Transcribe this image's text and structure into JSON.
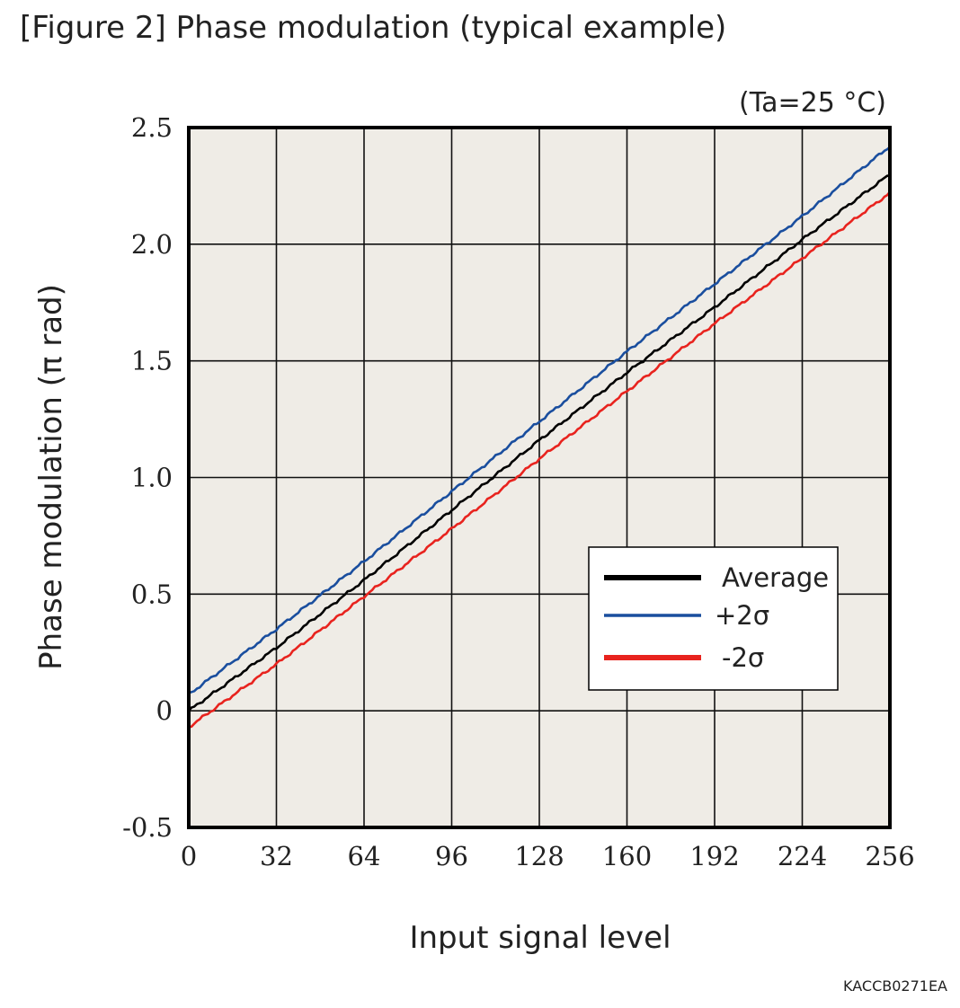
{
  "figure_title": "[Figure 2] Phase modulation (typical example)",
  "figure_code": "KACCB0271EA",
  "chart_data": {
    "type": "line",
    "condition_label": "(Ta=25 °C)",
    "xlabel": "Input signal level",
    "ylabel": "Phase modulation (π rad)",
    "xlim": [
      0,
      256
    ],
    "ylim": [
      -0.5,
      2.5
    ],
    "x_ticks": [
      0,
      32,
      64,
      96,
      128,
      160,
      192,
      224,
      256
    ],
    "x_tick_labels": [
      "0",
      "32",
      "64",
      "96",
      "128",
      "160",
      "192",
      "224",
      "256"
    ],
    "y_ticks": [
      -0.5,
      0,
      0.5,
      1.0,
      1.5,
      2.0,
      2.5
    ],
    "y_tick_labels": [
      "-0.5",
      "0",
      "0.5",
      "1.0",
      "1.5",
      "2.0",
      "2.5"
    ],
    "grid": true,
    "legend_position": "lower-right",
    "plot_background": "#efece6",
    "x": [
      0,
      32,
      64,
      96,
      128,
      160,
      192,
      224,
      256
    ],
    "series": [
      {
        "name": "Average",
        "color": "#000000",
        "values": [
          0.0,
          0.27,
          0.56,
          0.86,
          1.16,
          1.45,
          1.73,
          2.02,
          2.3
        ]
      },
      {
        "name": "+2σ",
        "color": "#1a4e9e",
        "values": [
          0.07,
          0.35,
          0.64,
          0.94,
          1.24,
          1.54,
          1.83,
          2.12,
          2.42
        ]
      },
      {
        "name": "-2σ",
        "color": "#e8231e",
        "values": [
          -0.07,
          0.2,
          0.49,
          0.78,
          1.08,
          1.37,
          1.66,
          1.94,
          2.22
        ]
      }
    ]
  }
}
